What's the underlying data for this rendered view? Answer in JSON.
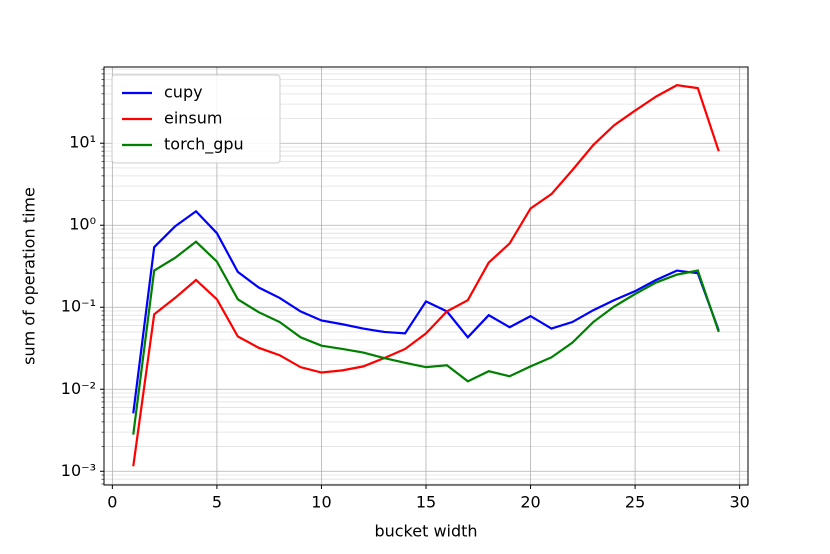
{
  "chart_data": {
    "type": "line",
    "x": [
      1,
      2,
      3,
      4,
      5,
      6,
      7,
      8,
      9,
      10,
      11,
      12,
      13,
      14,
      15,
      16,
      17,
      18,
      19,
      20,
      21,
      22,
      23,
      24,
      25,
      26,
      27,
      28,
      29
    ],
    "series": [
      {
        "name": "cupy",
        "color": "#0000ff",
        "values": [
          0.0051,
          0.54,
          0.97,
          1.48,
          0.8,
          0.27,
          0.174,
          0.13,
          0.089,
          0.069,
          0.062,
          0.055,
          0.05,
          0.048,
          0.118,
          0.089,
          0.043,
          0.08,
          0.057,
          0.078,
          0.055,
          0.066,
          0.092,
          0.122,
          0.157,
          0.215,
          0.28,
          0.26,
          0.052
        ]
      },
      {
        "name": "einsum",
        "color": "#ff0000",
        "values": [
          0.00115,
          0.082,
          0.13,
          0.215,
          0.125,
          0.044,
          0.032,
          0.026,
          0.0186,
          0.016,
          0.017,
          0.019,
          0.024,
          0.031,
          0.048,
          0.089,
          0.122,
          0.35,
          0.6,
          1.6,
          2.4,
          4.7,
          9.5,
          16.6,
          25,
          37,
          51,
          47,
          8.0
        ]
      },
      {
        "name": "torch_gpu",
        "color": "#008000",
        "values": [
          0.0028,
          0.28,
          0.4,
          0.63,
          0.36,
          0.125,
          0.087,
          0.066,
          0.043,
          0.034,
          0.031,
          0.028,
          0.024,
          0.021,
          0.0186,
          0.0196,
          0.0125,
          0.0166,
          0.0144,
          0.019,
          0.0245,
          0.037,
          0.066,
          0.102,
          0.145,
          0.2,
          0.25,
          0.28,
          0.05
        ]
      }
    ],
    "xlabel": "bucket width",
    "ylabel": "sum of operation time",
    "xlim": [
      -0.4,
      30.4
    ],
    "xticks": [
      0,
      5,
      10,
      15,
      20,
      25,
      30
    ],
    "ylim": [
      0.00068,
      85
    ],
    "ylog": true,
    "yticks": [
      {
        "value": 0.001,
        "label": "10⁻³"
      },
      {
        "value": 0.01,
        "label": "10⁻²"
      },
      {
        "value": 0.1,
        "label": "10⁻¹"
      },
      {
        "value": 1,
        "label": "10⁰"
      },
      {
        "value": 10,
        "label": "10¹"
      }
    ],
    "grid": true,
    "minor_grid": true,
    "legend": "upper left"
  }
}
